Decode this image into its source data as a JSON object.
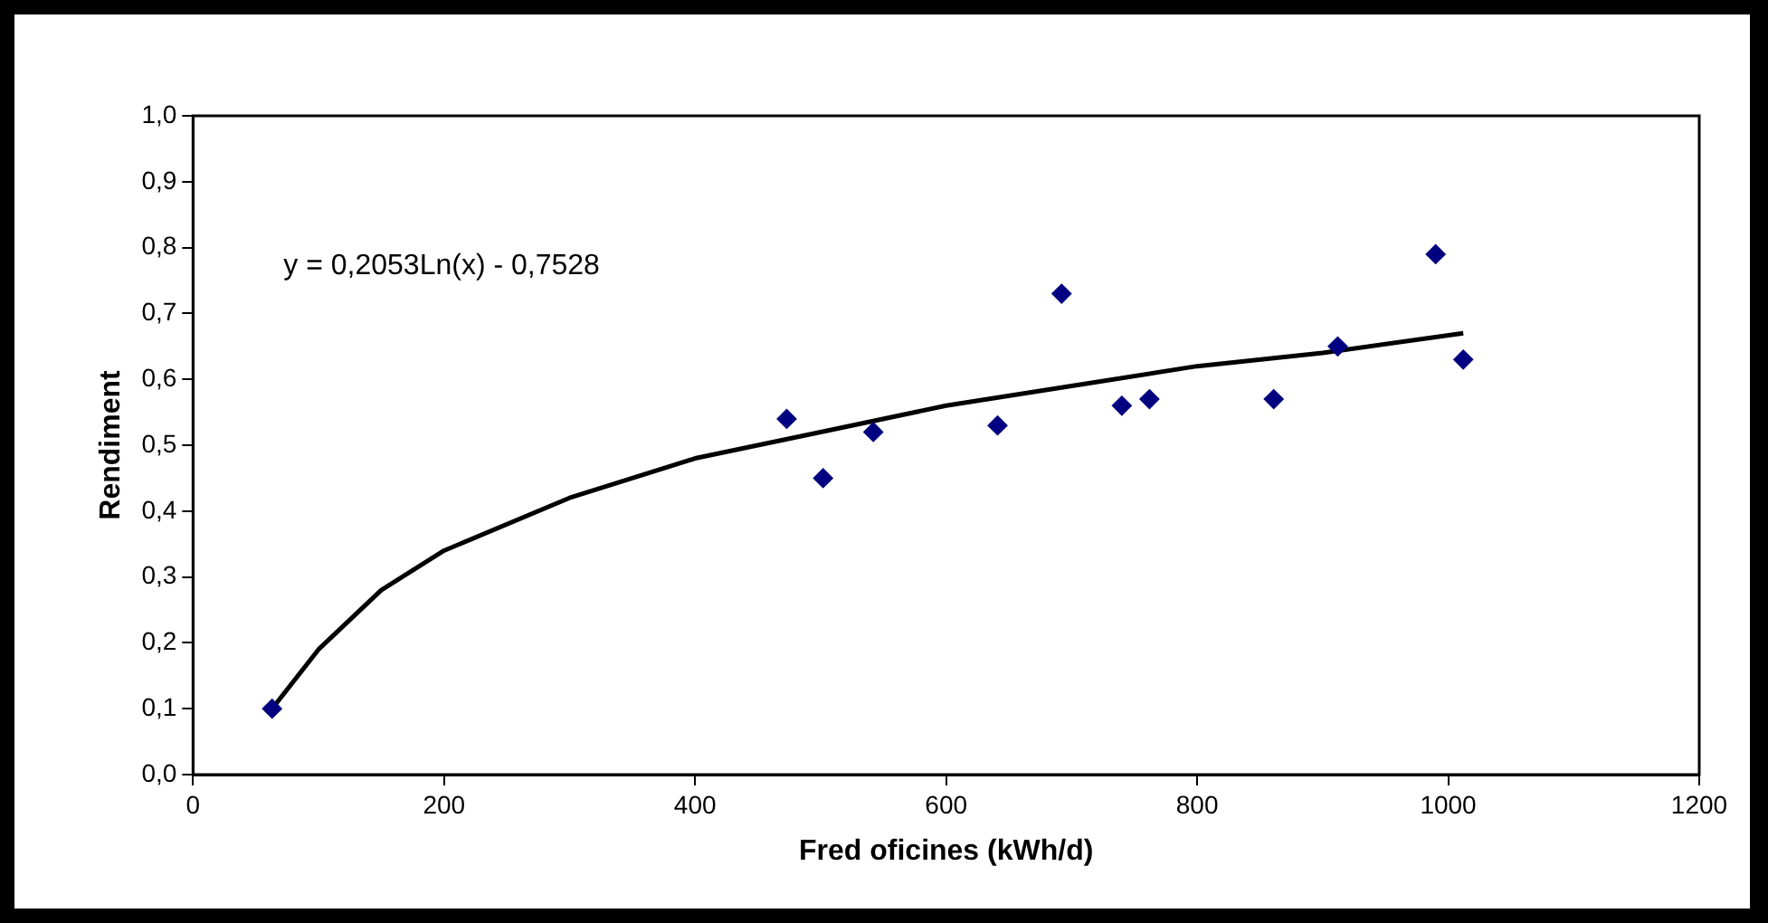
{
  "chart_data": {
    "type": "scatter",
    "xlabel": "Fred oficines (kWh/d)",
    "ylabel": "Rendiment",
    "xlim": [
      0,
      1200
    ],
    "xticks": [
      0,
      200,
      400,
      600,
      800,
      1000,
      1200
    ],
    "ylim": [
      0,
      1
    ],
    "yticks": [
      {
        "value": 0,
        "label": "0,0"
      },
      {
        "value": 0.1,
        "label": "0,1"
      },
      {
        "value": 0.2,
        "label": "0,2"
      },
      {
        "value": 0.3,
        "label": "0,3"
      },
      {
        "value": 0.4,
        "label": "0,4"
      },
      {
        "value": 0.5,
        "label": "0,5"
      },
      {
        "value": 0.6,
        "label": "0,6"
      },
      {
        "value": 0.7,
        "label": "0,7"
      },
      {
        "value": 0.8,
        "label": "0,8"
      },
      {
        "value": 0.9,
        "label": "0,9"
      },
      {
        "value": 1,
        "label": "1,0"
      }
    ],
    "legend": false,
    "annotations": [
      "y = 0,2053Ln(x) - 0,7528"
    ],
    "series": [
      {
        "type": "scatter",
        "marker": "diamond",
        "color": "#000080",
        "x": [
          63,
          473,
          502,
          542,
          641,
          692,
          740,
          762,
          861,
          912,
          990,
          1012
        ],
        "values": [
          0.1,
          0.54,
          0.45,
          0.52,
          0.53,
          0.73,
          0.56,
          0.57,
          0.57,
          0.65,
          0.79,
          0.63
        ]
      },
      {
        "type": "line",
        "marker": "none",
        "line_style": "solid",
        "color": "#000000",
        "x": [
          63,
          100,
          150,
          200,
          300,
          400,
          500,
          600,
          700,
          800,
          900,
          1012
        ],
        "values": [
          0.1,
          0.19,
          0.28,
          0.34,
          0.42,
          0.48,
          0.52,
          0.56,
          0.59,
          0.62,
          0.64,
          0.67
        ]
      }
    ]
  }
}
